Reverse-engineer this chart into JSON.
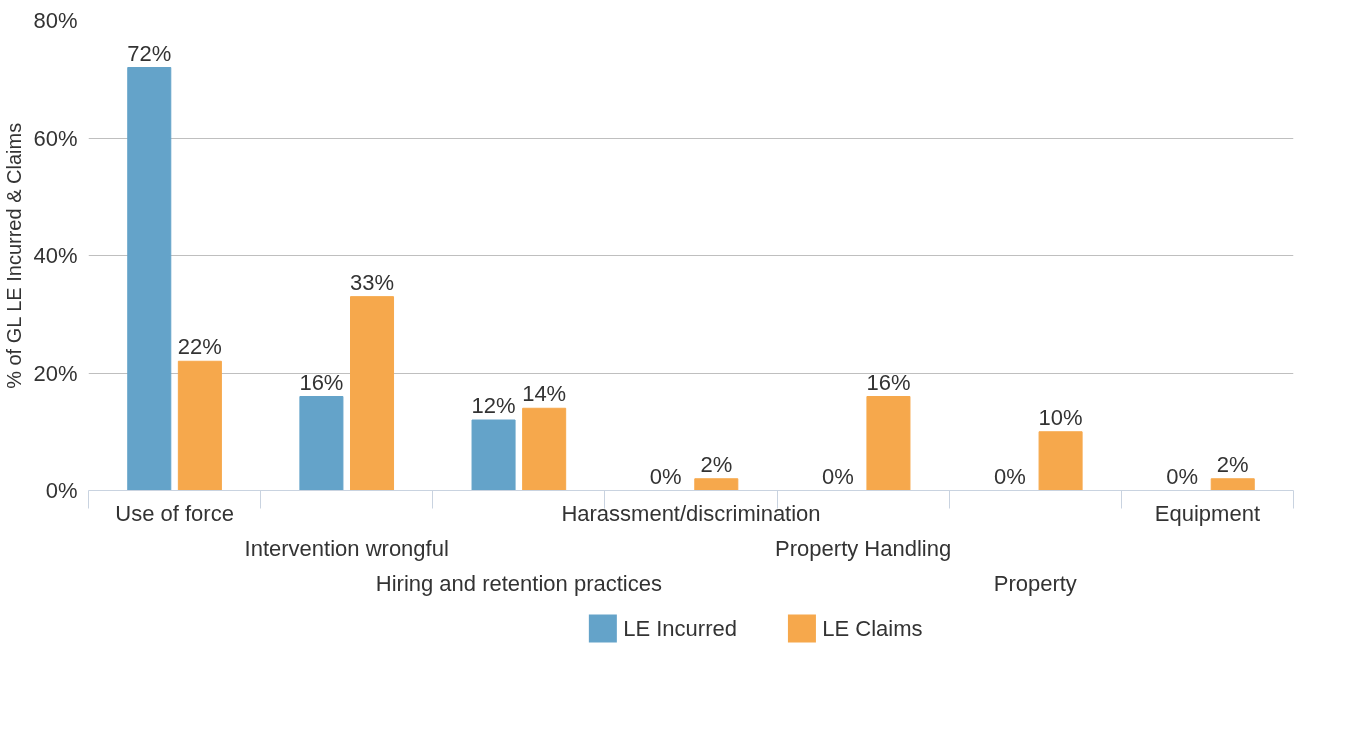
{
  "chart_data": {
    "type": "bar",
    "categories": [
      "Use of force",
      "Intervention wrongful",
      "Hiring and retention practices",
      "Harassment/discrimination",
      "Property Handling",
      "Property",
      "Equipment"
    ],
    "series": [
      {
        "name": "LE Incurred",
        "color": "#64a3c9",
        "values": [
          72,
          16,
          12,
          0,
          0,
          0,
          0
        ],
        "value_labels": [
          "72%",
          "16%",
          "12%",
          "0%",
          "0%",
          "0%",
          "0%"
        ]
      },
      {
        "name": "LE Claims",
        "color": "#f6a84c",
        "values": [
          22,
          33,
          14,
          2,
          16,
          10,
          2
        ],
        "value_labels": [
          "22%",
          "33%",
          "14%",
          "2%",
          "16%",
          "10%",
          "2%"
        ]
      }
    ],
    "ylabel": "% of GL LE Incurred & Claims",
    "ylim": [
      0,
      80
    ],
    "yticks": [
      {
        "value": 0,
        "label": "0%"
      },
      {
        "value": 20,
        "label": "20%"
      },
      {
        "value": 40,
        "label": "40%"
      },
      {
        "value": 60,
        "label": "60%"
      },
      {
        "value": 80,
        "label": "80%"
      }
    ],
    "grid": "y",
    "legend": "bottom"
  }
}
